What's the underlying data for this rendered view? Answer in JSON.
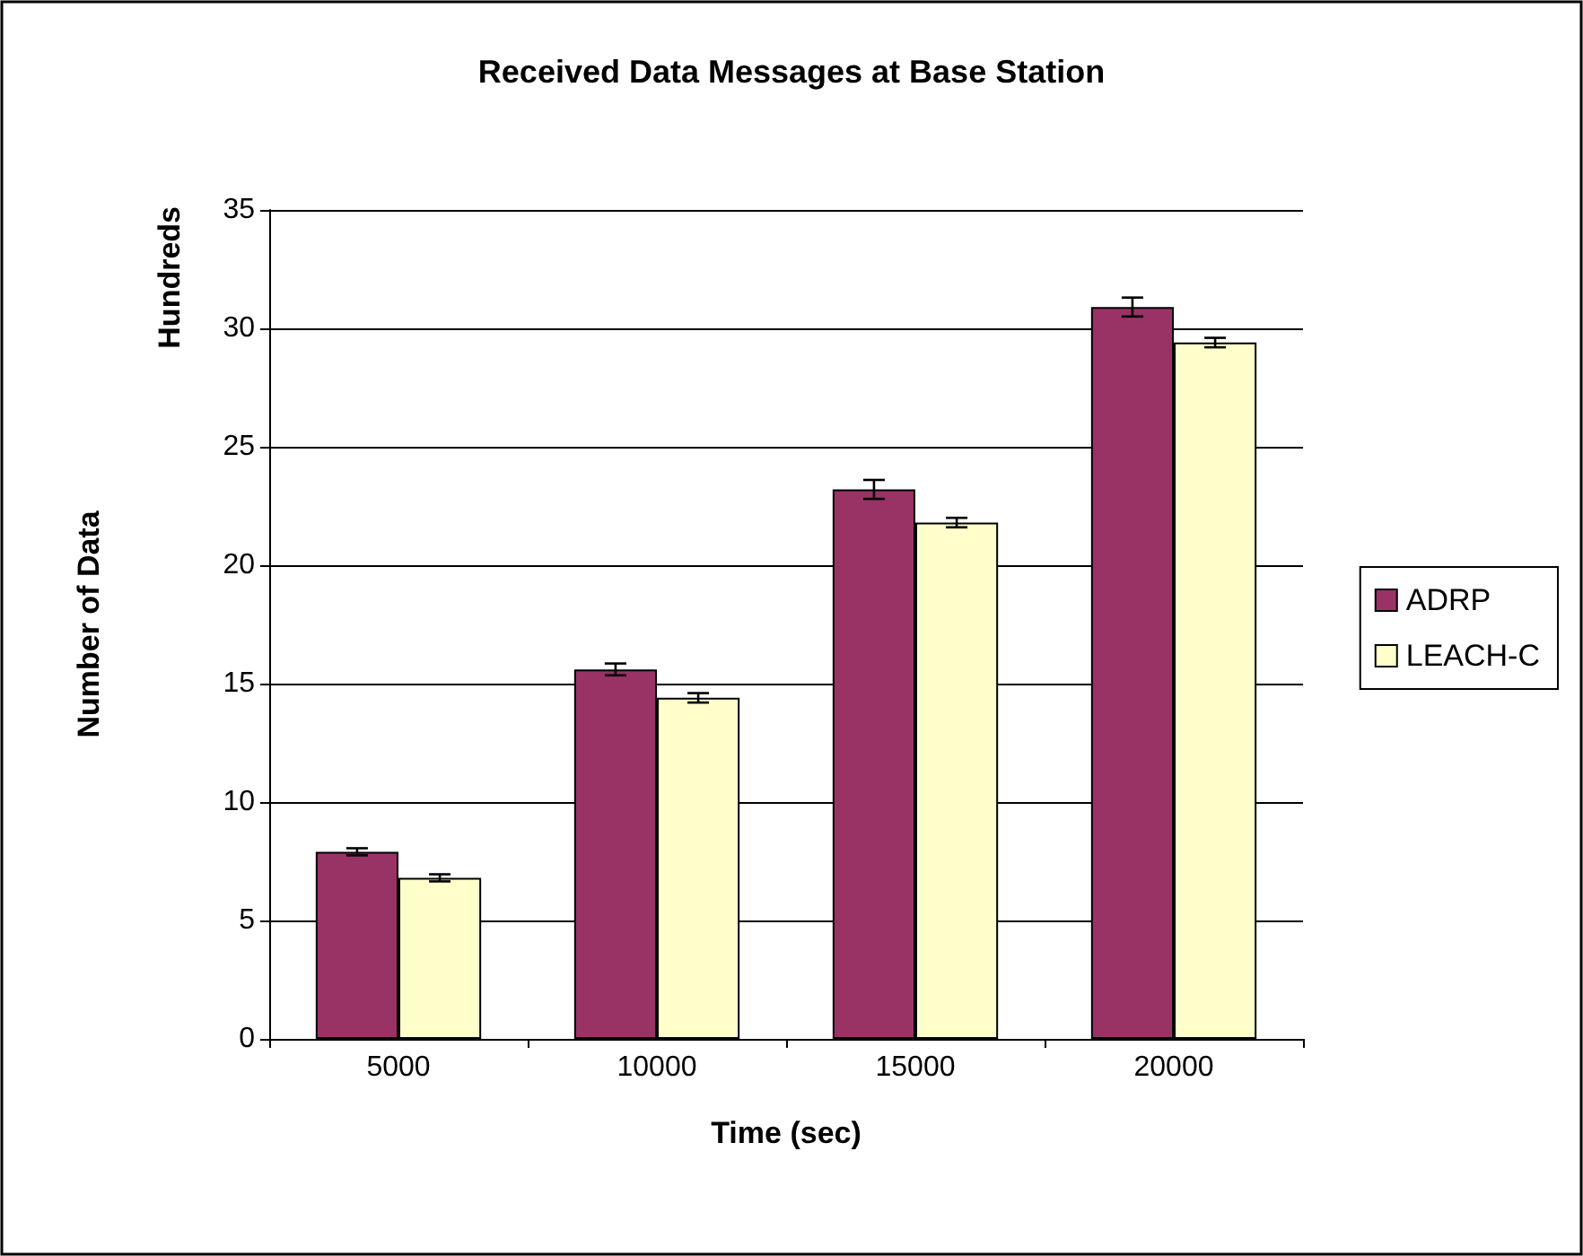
{
  "chart_data": {
    "type": "bar",
    "title": "Received Data Messages at Base Station",
    "xlabel": "Time (sec)",
    "ylabel": "Number of Data",
    "annotations": [
      "Hundreds"
    ],
    "categories": [
      "5000",
      "10000",
      "15000",
      "20000"
    ],
    "series": [
      {
        "name": "ADRP",
        "color": "#993366",
        "values": [
          7.9,
          15.6,
          23.2,
          30.9
        ],
        "errors": [
          0.15,
          0.25,
          0.4,
          0.4
        ]
      },
      {
        "name": "LEACH-C",
        "color": "#ffffcc",
        "values": [
          6.8,
          14.4,
          21.8,
          29.4
        ],
        "errors": [
          0.15,
          0.2,
          0.2,
          0.2
        ]
      }
    ],
    "ylim": [
      0,
      35
    ],
    "yticks": [
      0,
      5,
      10,
      15,
      20,
      25,
      30,
      35
    ],
    "grid": "y",
    "legend": "right"
  }
}
